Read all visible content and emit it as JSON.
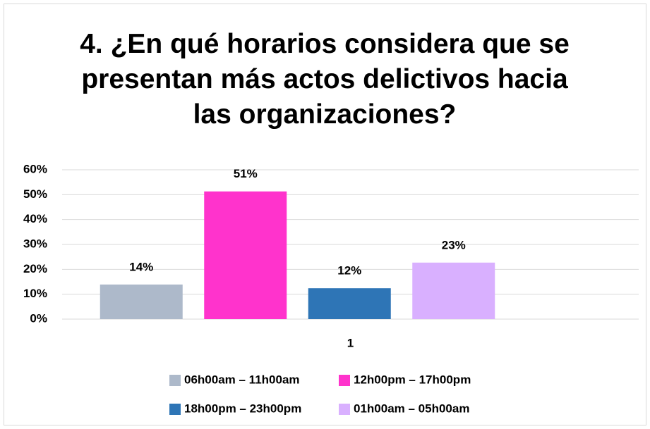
{
  "chart_data": {
    "type": "bar",
    "title": "4. ¿En qué horarios considera que se presentan más actos delictivos hacia las organizaciones?",
    "categories": [
      "1"
    ],
    "series": [
      {
        "name": "06h00am – 11h00am",
        "color": "#adb9ca",
        "values": [
          13.9
        ],
        "value_labels": [
          "14%"
        ]
      },
      {
        "name": "12h00pm – 17h00pm",
        "color": "#ff33cc",
        "values": [
          51.3
        ],
        "value_labels": [
          "51%"
        ]
      },
      {
        "name": "18h00pm – 23h00pm",
        "color": "#2e75b6",
        "values": [
          12.4
        ],
        "value_labels": [
          "12%"
        ]
      },
      {
        "name": "01h00am – 05h00am",
        "color": "#d9b0ff",
        "values": [
          22.7
        ],
        "value_labels": [
          "23%"
        ]
      }
    ],
    "ylim": [
      0,
      60
    ],
    "yticks": [
      {
        "value": 0,
        "label": "0%"
      },
      {
        "value": 10,
        "label": "10%"
      },
      {
        "value": 20,
        "label": "20%"
      },
      {
        "value": 30,
        "label": "30%"
      },
      {
        "value": 40,
        "label": "40%"
      },
      {
        "value": 50,
        "label": "50%"
      },
      {
        "value": 60,
        "label": "60%"
      }
    ],
    "grid": true,
    "legend": "bottom"
  }
}
